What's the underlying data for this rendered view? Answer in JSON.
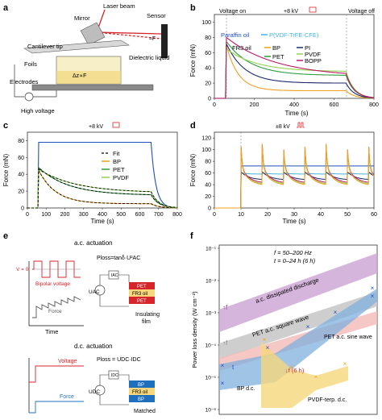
{
  "labels": {
    "a": "a",
    "b": "b",
    "c": "c",
    "d": "d",
    "e": "e",
    "f": "f"
  },
  "colors": {
    "paraffin": "#1f4fbf",
    "pvdf_trfe": "#43b3e0",
    "bp": "#f0a020",
    "pet": "#2e9e3e",
    "pi": "#1b2a6e",
    "pvdf": "#8fd44f",
    "bopp": "#c0186a",
    "red": "#d6262b",
    "purple_band": "#cfa8d6",
    "gray_band": "#c9c9c9",
    "red_band": "#f2b9b6",
    "blue_band": "#7fb0dd",
    "yellow_band": "#f6d77c"
  },
  "panel_a": {
    "labels": {
      "laser_beam": "Laser beam",
      "mirror": "Mirror",
      "sensor": "Sensor",
      "cantilever_tip": "Cantilever tip",
      "foils": "Foils",
      "dielectric_liquid": "Dielectric liquid",
      "electrodes": "Electrodes",
      "high_voltage": "High voltage",
      "force_symbol": "≈F",
      "delta_z": "Δz∝F",
      "gauge_symbol": "≈F"
    }
  },
  "panel_b": {
    "chart_data": {
      "type": "line",
      "xlabel": "Time (s)",
      "ylabel": "Force (mN)",
      "xlim": [
        0,
        800
      ],
      "ylim": [
        0,
        110
      ],
      "xticks": [
        0,
        200,
        400,
        600,
        800
      ],
      "yticks": [
        0,
        20,
        40,
        60,
        80,
        100
      ],
      "annotations": {
        "voltage_on": "Voltage on",
        "voltage_off": "Voltage off",
        "amplitude": "+8 kV"
      },
      "voltage_on_x": 60,
      "voltage_off_x": 660,
      "series": [
        {
          "name": "Paraffin oil",
          "color": "#1f4fbf"
        },
        {
          "name": "P(VDF-TrFE-CFE)",
          "color": "#43b3e0"
        },
        {
          "name": "BP",
          "color": "#f0a020"
        },
        {
          "name": "PET",
          "color": "#2e9e3e"
        },
        {
          "name": "PI",
          "color": "#1b2a6e"
        },
        {
          "name": "PVDF",
          "color": "#8fd44f"
        },
        {
          "name": "BOPP",
          "color": "#c0186a"
        }
      ],
      "legend_header": "FR3 oil"
    }
  },
  "panel_c": {
    "chart_data": {
      "type": "line",
      "xlabel": "Time (s)",
      "ylabel": "Force (mN)",
      "xlim": [
        0,
        800
      ],
      "ylim": [
        0,
        90
      ],
      "xticks": [
        0,
        100,
        200,
        300,
        400,
        500,
        600,
        700,
        800
      ],
      "yticks": [
        0,
        20,
        40,
        60,
        80
      ],
      "annotation": "+8 kV",
      "legend": [
        "Fit",
        "BP",
        "PET",
        "PVDF"
      ]
    }
  },
  "panel_d": {
    "chart_data": {
      "type": "line",
      "xlabel": "Time (s)",
      "ylabel": "Force (mN)",
      "xlim": [
        0,
        60
      ],
      "ylim": [
        0,
        130
      ],
      "xticks": [
        0,
        10,
        20,
        30,
        40,
        50,
        60
      ],
      "yticks": [
        0,
        20,
        40,
        60,
        80,
        100,
        120
      ],
      "annotation": "±8 kV"
    }
  },
  "panel_e": {
    "ac_title": "a.c. actuation",
    "dc_title": "d.c. actuation",
    "v0": "V = 0",
    "bipolar": "Bipolar voltage",
    "force": "Force",
    "time": "Time",
    "voltage": "Voltage",
    "force_dc": "Force",
    "ploss_ac": "Ploss=tanδ·U²AC",
    "ploss_dc": "Ploss = UDC·IDC",
    "uac": "UAC",
    "udc": "UDC",
    "iac": "IAC",
    "idc": "IDC",
    "pet": "PET",
    "fr3": "FR3 oil",
    "bp": "BP",
    "insulating": "Insulating",
    "film": "film",
    "matched": "Matched"
  },
  "panel_f": {
    "chart_data": {
      "type": "scatter",
      "ylabel": "Power loss density (W cm⁻²)",
      "yscale": "log",
      "yticks": [
        "10⁻¹",
        "10⁻²",
        "10⁻³",
        "10⁻⁴",
        "10⁻⁵",
        "10⁻⁶"
      ],
      "conditions": [
        "f = 50–200 Hz",
        "t = 0–24 h (6 h)"
      ],
      "band_labels": [
        "a.c. dissipated discharge",
        "PET a.c. square wave"
      ],
      "point_labels": [
        "PET a.c. sine wave",
        "BP d.c.",
        "PVDF-terp. d.c."
      ],
      "arrow_labels": [
        "↑f",
        "↑f",
        "↓f (6 h)",
        "t"
      ]
    }
  }
}
